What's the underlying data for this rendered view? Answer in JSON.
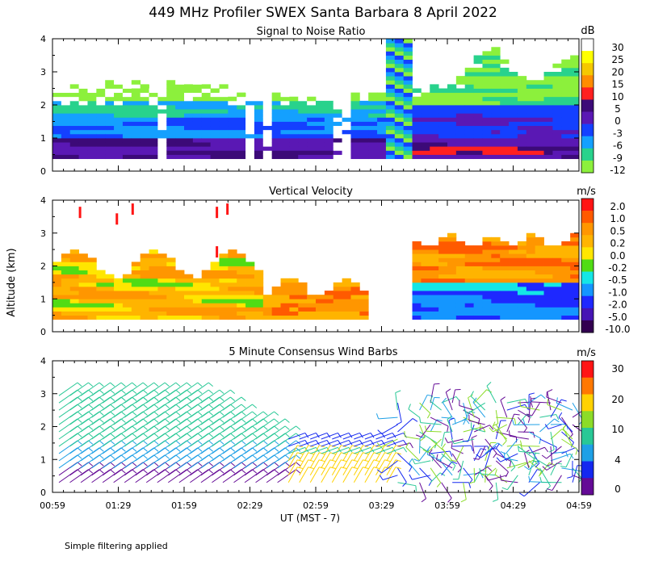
{
  "figure": {
    "title": "449 MHz Profiler SWEX Santa Barbara  8 April 2022",
    "ylabel": "Altitude (km)",
    "xlabel": "UT  (MST - 7)",
    "footnote": "Simple filtering applied",
    "x_ticks": [
      "00:59",
      "01:29",
      "01:59",
      "02:29",
      "02:59",
      "03:29",
      "03:59",
      "04:29",
      "04:59"
    ],
    "y_ticks": [
      "0",
      "1",
      "2",
      "3",
      "4"
    ]
  },
  "chart_data": [
    {
      "type": "heatmap",
      "title": "Signal to Noise Ratio",
      "units": "dB",
      "xrange": [
        "00:59",
        "04:59"
      ],
      "ylim": [
        0,
        4
      ],
      "colorbar_labels": [
        "30",
        "25",
        "20",
        "15",
        "10",
        "5",
        "0",
        "-3",
        "-6",
        "-9",
        "-12"
      ],
      "colorbar_colors": [
        "#ffffff",
        "#ffff00",
        "#f5c800",
        "#ff8c00",
        "#ff2020",
        "#3c0a78",
        "#5a18b4",
        "#1440ff",
        "#14a0ff",
        "#28d28c",
        "#8cf03c"
      ]
    },
    {
      "type": "heatmap",
      "title": "Vertical Velocity",
      "units": "m/s",
      "xrange": [
        "00:59",
        "04:59"
      ],
      "ylim": [
        0,
        4
      ],
      "colorbar_labels": [
        "2.0",
        "1.0",
        "0.5",
        "0.2",
        "0.0",
        "-0.2",
        "-0.5",
        "-1.0",
        "-2.0",
        "-5.0",
        "-10.0"
      ],
      "colorbar_colors": [
        "#ff1414",
        "#ff5a00",
        "#ff9600",
        "#ffb400",
        "#ffe600",
        "#50dc14",
        "#14e6e6",
        "#1496ff",
        "#1e28ff",
        "#4614b4",
        "#320050"
      ]
    },
    {
      "type": "scatter",
      "title": "5 Minute Consensus Wind Barbs",
      "units": "m/s",
      "xrange": [
        "00:59",
        "04:59"
      ],
      "ylim": [
        0,
        4
      ],
      "colorbar_labels": [
        "30",
        "20",
        "10",
        "4",
        "0"
      ],
      "colorbar_colors": [
        "#ff1414",
        "#ff7800",
        "#ffd200",
        "#8cdc28",
        "#28c896",
        "#1ea0e6",
        "#1428f0",
        "#640a96"
      ]
    }
  ]
}
